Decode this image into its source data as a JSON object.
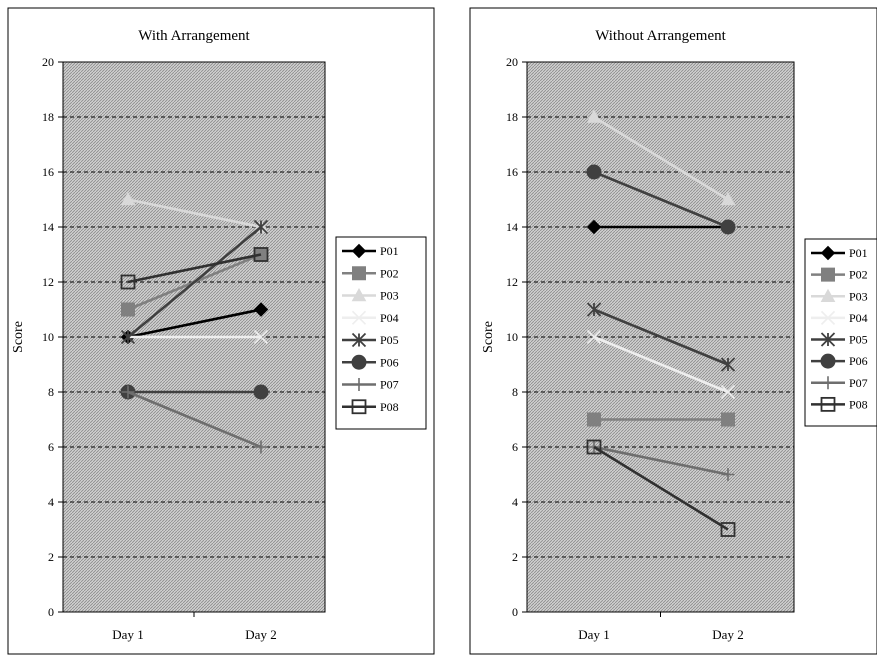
{
  "chart_data": [
    {
      "type": "line",
      "title": "With Arrangement",
      "xlabel": "",
      "ylabel": "Score",
      "ylim": [
        0,
        20
      ],
      "yticks": [
        0,
        2,
        4,
        6,
        8,
        10,
        12,
        14,
        16,
        18,
        20
      ],
      "categories": [
        "Day 1",
        "Day 2"
      ],
      "grid": "dashed horizontal",
      "legend_position": "right",
      "series": [
        {
          "name": "P01",
          "values": [
            10,
            11
          ],
          "color": "#000000",
          "marker": "diamond"
        },
        {
          "name": "P02",
          "values": [
            11,
            13
          ],
          "color": "#808080",
          "marker": "square-filled"
        },
        {
          "name": "P03",
          "values": [
            15,
            14
          ],
          "color": "#d9d9d9",
          "marker": "triangle"
        },
        {
          "name": "P04",
          "values": [
            10,
            10
          ],
          "color": "#eeeeee",
          "marker": "x"
        },
        {
          "name": "P05",
          "values": [
            10,
            14
          ],
          "color": "#404040",
          "marker": "star"
        },
        {
          "name": "P06",
          "values": [
            8,
            8
          ],
          "color": "#404040",
          "marker": "circle"
        },
        {
          "name": "P07",
          "values": [
            8,
            6
          ],
          "color": "#6e6e6e",
          "marker": "plus"
        },
        {
          "name": "P08",
          "values": [
            12,
            13
          ],
          "color": "#303030",
          "marker": "square-open"
        }
      ]
    },
    {
      "type": "line",
      "title": "Without Arrangement",
      "xlabel": "",
      "ylabel": "Score",
      "ylim": [
        0,
        20
      ],
      "yticks": [
        0,
        2,
        4,
        6,
        8,
        10,
        12,
        14,
        16,
        18,
        20
      ],
      "categories": [
        "Day 1",
        "Day 2"
      ],
      "grid": "dashed horizontal",
      "legend_position": "right",
      "series": [
        {
          "name": "P01",
          "values": [
            14,
            14
          ],
          "color": "#000000",
          "marker": "diamond"
        },
        {
          "name": "P02",
          "values": [
            7,
            7
          ],
          "color": "#808080",
          "marker": "square-filled"
        },
        {
          "name": "P03",
          "values": [
            18,
            15
          ],
          "color": "#d9d9d9",
          "marker": "triangle"
        },
        {
          "name": "P04",
          "values": [
            10,
            8
          ],
          "color": "#eeeeee",
          "marker": "x"
        },
        {
          "name": "P05",
          "values": [
            11,
            9
          ],
          "color": "#404040",
          "marker": "star"
        },
        {
          "name": "P06",
          "values": [
            16,
            14
          ],
          "color": "#404040",
          "marker": "circle"
        },
        {
          "name": "P07",
          "values": [
            6,
            5
          ],
          "color": "#6e6e6e",
          "marker": "plus"
        },
        {
          "name": "P08",
          "values": [
            6,
            3
          ],
          "color": "#303030",
          "marker": "square-open"
        }
      ]
    }
  ]
}
